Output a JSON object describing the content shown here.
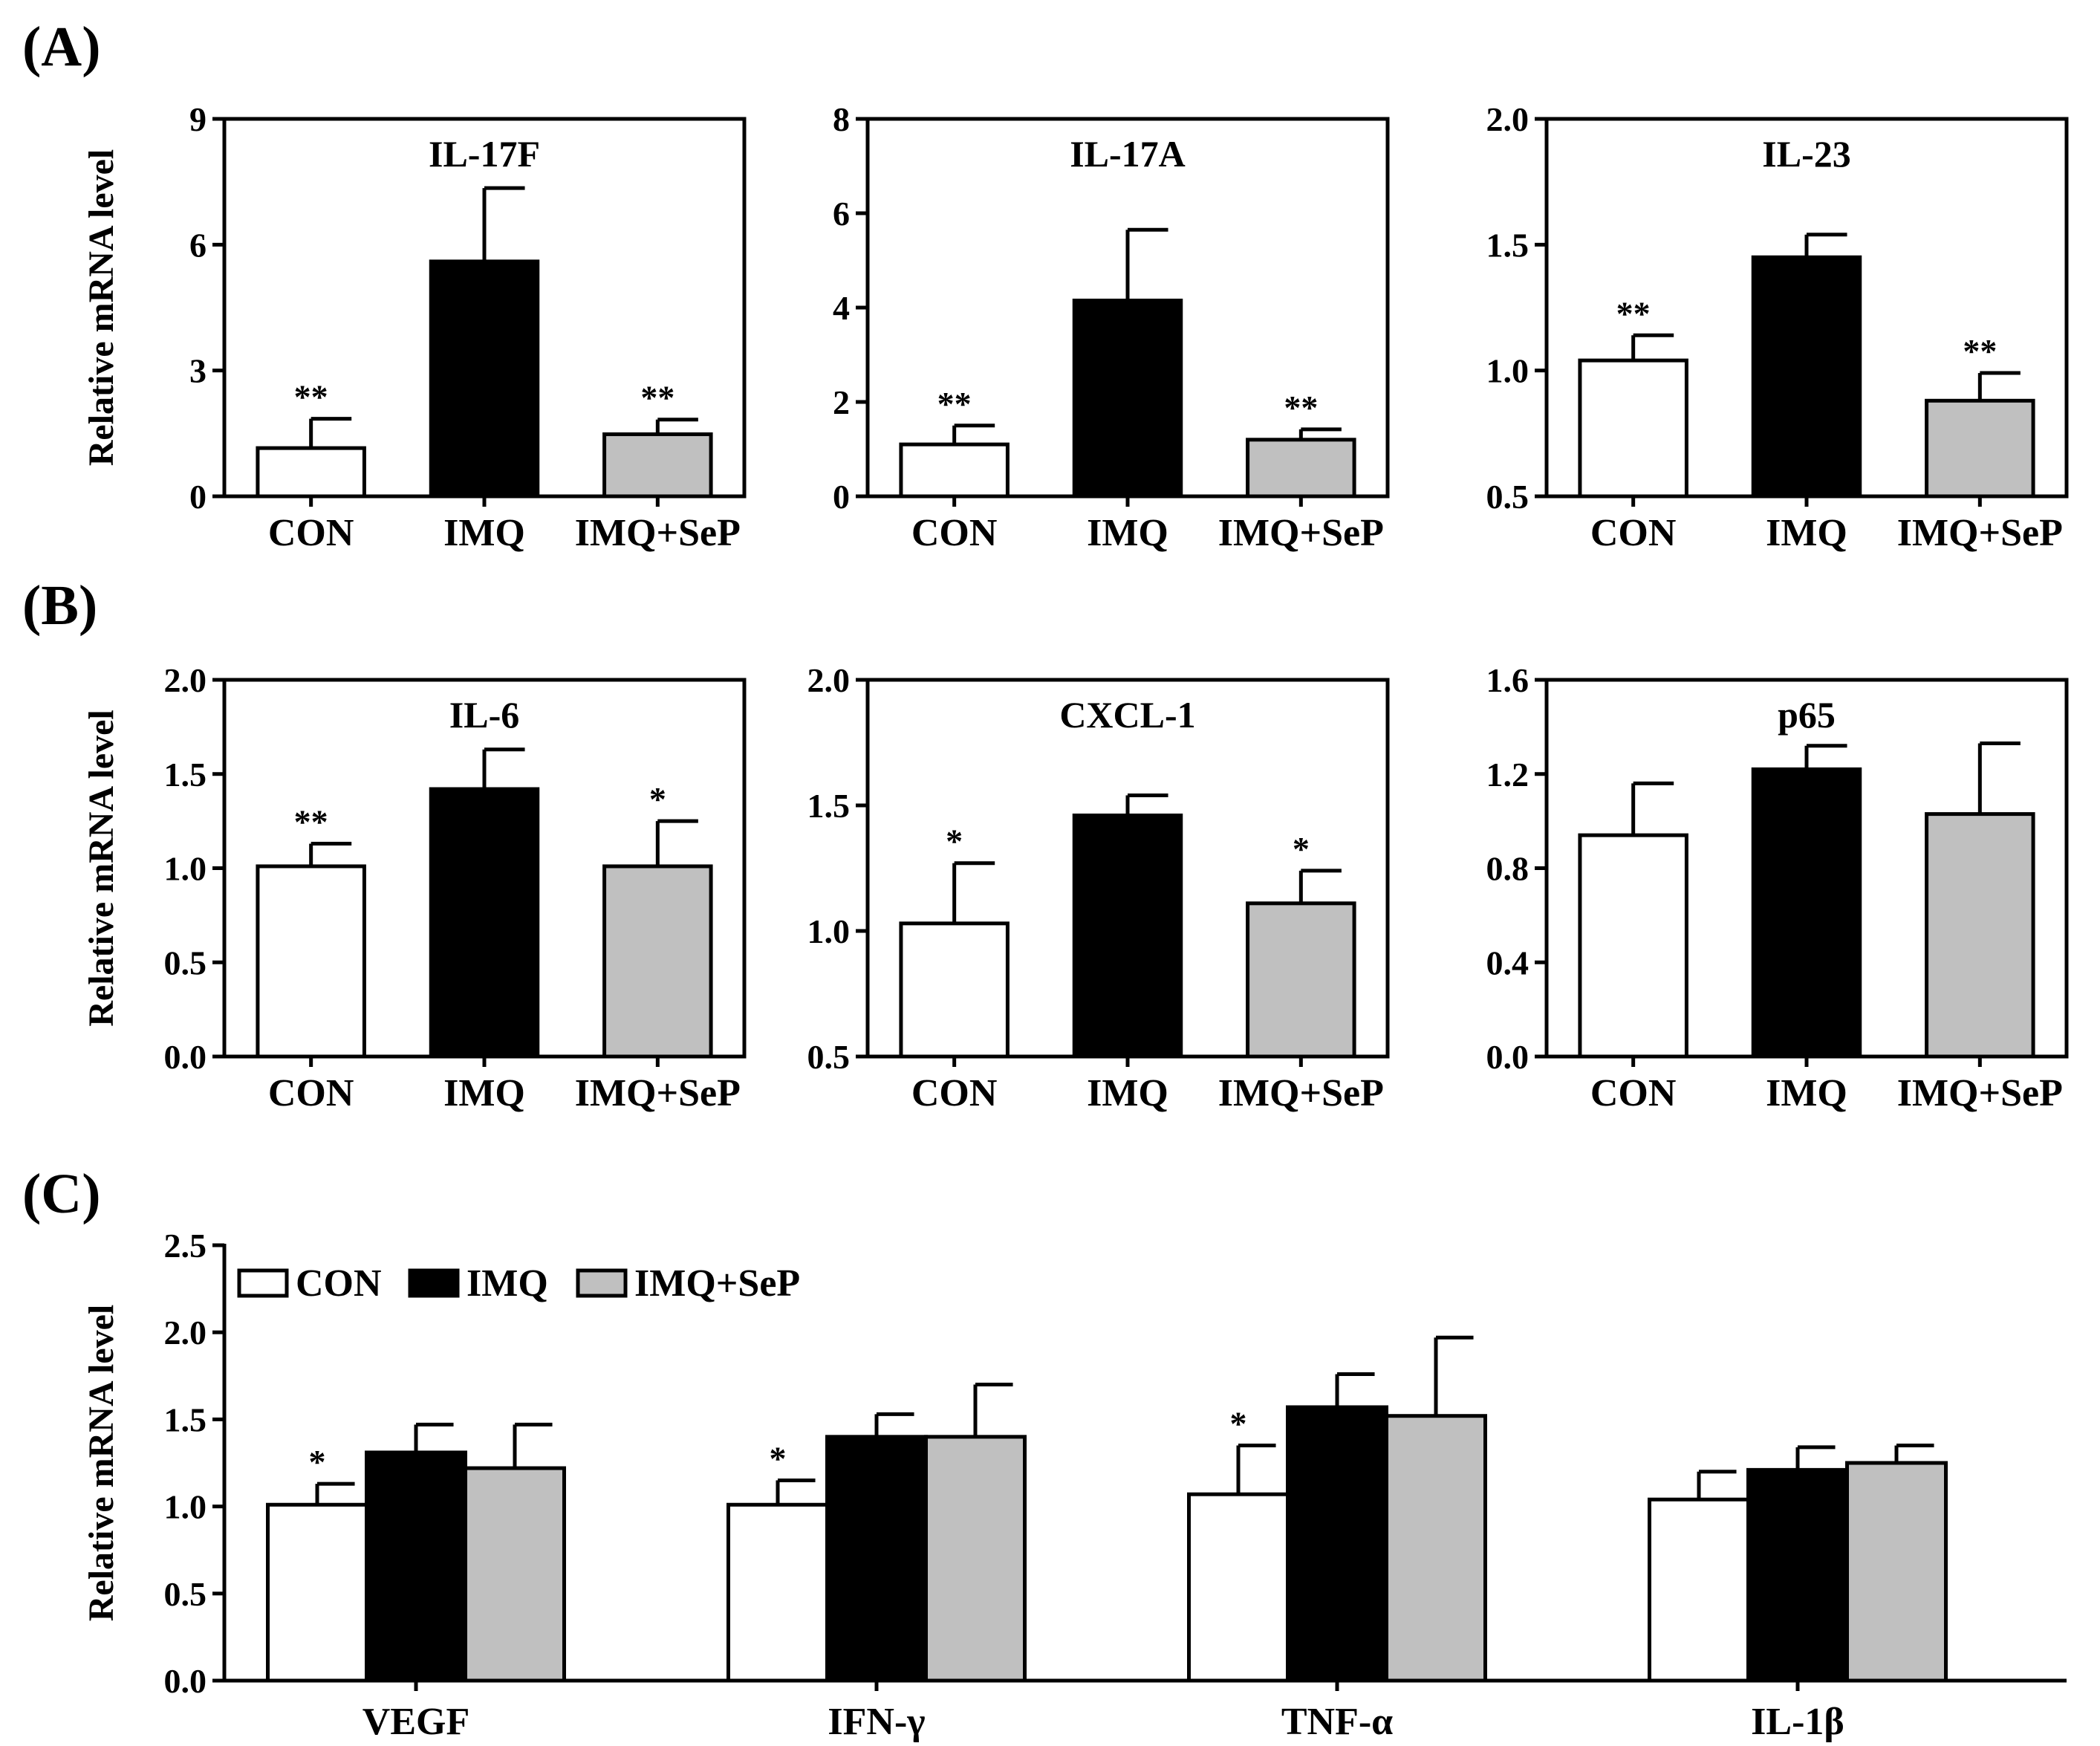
{
  "panel_labels": [
    "(A)",
    "(B)",
    "(C)"
  ],
  "colors": {
    "CON": "#ffffff",
    "IMQ": "#000000",
    "IMQ+SeP": "#c0c0c0",
    "stroke": "#000000"
  },
  "chart_data": [
    {
      "type": "bar",
      "panel": "(A)",
      "title": "IL-17F",
      "ylabel": "Relative mRNA level",
      "categories": [
        "CON",
        "IMQ",
        "IMQ+SeP"
      ],
      "values": [
        1.15,
        5.6,
        1.48
      ],
      "errors": [
        0.7,
        1.75,
        0.35
      ],
      "significance": [
        "**",
        "",
        "**"
      ],
      "ylim": [
        0,
        9
      ],
      "yticks": [
        0,
        3,
        6,
        9
      ],
      "ytick_labels": [
        "0",
        "3",
        "6",
        "9"
      ]
    },
    {
      "type": "bar",
      "panel": "(A)",
      "title": "IL-17A",
      "ylabel": "",
      "categories": [
        "CON",
        "IMQ",
        "IMQ+SeP"
      ],
      "values": [
        1.1,
        4.15,
        1.2
      ],
      "errors": [
        0.4,
        1.5,
        0.22
      ],
      "significance": [
        "**",
        "",
        "**"
      ],
      "ylim": [
        0,
        8
      ],
      "yticks": [
        0,
        2,
        4,
        6,
        8
      ],
      "ytick_labels": [
        "0",
        "2",
        "4",
        "6",
        "8"
      ]
    },
    {
      "type": "bar",
      "panel": "(A)",
      "title": "IL-23",
      "ylabel": "",
      "categories": [
        "CON",
        "IMQ",
        "IMQ+SeP"
      ],
      "values": [
        1.04,
        1.45,
        0.88
      ],
      "errors": [
        0.1,
        0.09,
        0.11
      ],
      "significance": [
        "**",
        "",
        "**"
      ],
      "ylim": [
        0.5,
        2.0
      ],
      "yticks": [
        0.5,
        1.0,
        1.5,
        2.0
      ],
      "ytick_labels": [
        "0.5",
        "1.0",
        "1.5",
        "2.0"
      ]
    },
    {
      "type": "bar",
      "panel": "(B)",
      "title": "IL-6",
      "ylabel": "Relative mRNA level",
      "categories": [
        "CON",
        "IMQ",
        "IMQ+SeP"
      ],
      "values": [
        1.01,
        1.42,
        1.01
      ],
      "errors": [
        0.12,
        0.21,
        0.24
      ],
      "significance": [
        "**",
        "",
        "*"
      ],
      "ylim": [
        0,
        2.0
      ],
      "yticks": [
        0,
        0.5,
        1.0,
        1.5,
        2.0
      ],
      "ytick_labels": [
        "0.0",
        "0.5",
        "1.0",
        "1.5",
        "2.0"
      ]
    },
    {
      "type": "bar",
      "panel": "(B)",
      "title": "CXCL-1",
      "ylabel": "",
      "categories": [
        "CON",
        "IMQ",
        "IMQ+SeP"
      ],
      "values": [
        1.03,
        1.46,
        1.11
      ],
      "errors": [
        0.24,
        0.08,
        0.13
      ],
      "significance": [
        "*",
        "",
        "*"
      ],
      "ylim": [
        0.5,
        2.0
      ],
      "yticks": [
        0.5,
        1.0,
        1.5,
        2.0
      ],
      "ytick_labels": [
        "0.5",
        "1.0",
        "1.5",
        "2.0"
      ]
    },
    {
      "type": "bar",
      "panel": "(B)",
      "title": "p65",
      "ylabel": "",
      "categories": [
        "CON",
        "IMQ",
        "IMQ+SeP"
      ],
      "values": [
        0.94,
        1.22,
        1.03
      ],
      "errors": [
        0.22,
        0.1,
        0.3
      ],
      "significance": [
        "",
        "",
        ""
      ],
      "ylim": [
        0,
        1.6
      ],
      "yticks": [
        0,
        0.4,
        0.8,
        1.2,
        1.6
      ],
      "ytick_labels": [
        "0.0",
        "0.4",
        "0.8",
        "1.2",
        "1.6"
      ]
    },
    {
      "type": "grouped_bar",
      "panel": "(C)",
      "title": "",
      "ylabel": "Relative mRNA level",
      "categories": [
        "VEGF",
        "IFN-γ",
        "TNF-α",
        "IL-1β"
      ],
      "series": [
        {
          "name": "CON",
          "values": [
            1.01,
            1.01,
            1.07,
            1.04
          ],
          "errors": [
            0.12,
            0.14,
            0.28,
            0.16
          ],
          "significance": [
            "*",
            "*",
            "*",
            ""
          ]
        },
        {
          "name": "IMQ",
          "values": [
            1.31,
            1.4,
            1.57,
            1.21
          ],
          "errors": [
            0.16,
            0.13,
            0.19,
            0.13
          ],
          "significance": [
            "",
            "",
            "",
            ""
          ]
        },
        {
          "name": "IMQ+SeP",
          "values": [
            1.22,
            1.4,
            1.52,
            1.25
          ],
          "errors": [
            0.25,
            0.3,
            0.45,
            0.1
          ],
          "significance": [
            "",
            "",
            "",
            ""
          ]
        }
      ],
      "legend": [
        "CON",
        "IMQ",
        "IMQ+SeP"
      ],
      "legend_position": "top-left",
      "ylim": [
        0,
        2.5
      ],
      "yticks": [
        0,
        0.5,
        1.0,
        1.5,
        2.0,
        2.5
      ],
      "ytick_labels": [
        "0.0",
        "0.5",
        "1.0",
        "1.5",
        "2.0",
        "2.5"
      ]
    }
  ]
}
